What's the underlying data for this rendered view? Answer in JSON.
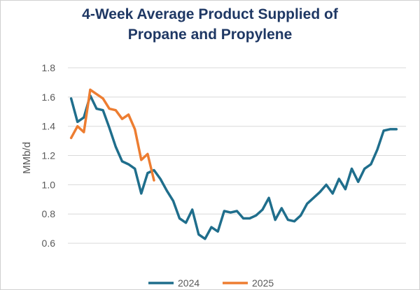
{
  "chart_data": {
    "type": "line",
    "title_line1": "4-Week Average Product Supplied of",
    "title_line2": "Propane and Propylene",
    "ylabel": "MMb/d",
    "xlabel": "",
    "ylim": [
      0.5,
      1.8
    ],
    "yticks": [
      "0.6",
      "0.8",
      "1.0",
      "1.2",
      "1.4",
      "1.6",
      "1.8"
    ],
    "grid": true,
    "legend_position": "bottom",
    "series": [
      {
        "name": "2024",
        "color": "#1f6e8c",
        "values": [
          1.59,
          1.43,
          1.46,
          1.61,
          1.52,
          1.51,
          1.39,
          1.26,
          1.16,
          1.14,
          1.11,
          0.94,
          1.08,
          1.1,
          1.04,
          0.96,
          0.89,
          0.77,
          0.74,
          0.83,
          0.66,
          0.63,
          0.71,
          0.68,
          0.82,
          0.81,
          0.82,
          0.77,
          0.77,
          0.79,
          0.83,
          0.91,
          0.76,
          0.84,
          0.76,
          0.75,
          0.79,
          0.87,
          0.91,
          0.95,
          1.0,
          0.94,
          1.04,
          0.97,
          1.11,
          1.02,
          1.11,
          1.14,
          1.24,
          1.37,
          1.38,
          1.38
        ]
      },
      {
        "name": "2025",
        "color": "#ed7d31",
        "values": [
          1.32,
          1.4,
          1.36,
          1.65,
          1.62,
          1.59,
          1.52,
          1.51,
          1.45,
          1.48,
          1.38,
          1.17,
          1.21,
          1.03
        ]
      }
    ]
  }
}
